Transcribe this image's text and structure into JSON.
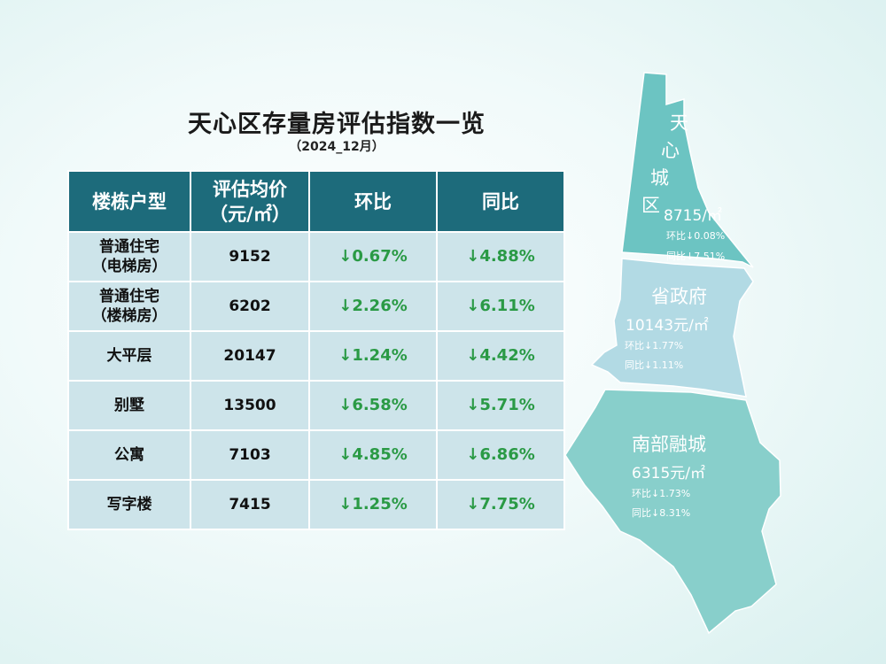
{
  "title": "天心区存量房评估指数一览",
  "subtitle": "（2024_12月）",
  "table": {
    "headers": {
      "type": "楼栋户型",
      "price_line1": "评估均价",
      "price_line2": "（元/㎡）",
      "mom": "环比",
      "yoy": "同比"
    },
    "rows": [
      {
        "type1": "普通住宅",
        "type2": "（电梯房）",
        "price": "9152",
        "mom": "↓0.67%",
        "yoy": "↓4.88%"
      },
      {
        "type1": "普通住宅",
        "type2": "（楼梯房）",
        "price": "6202",
        "mom": "↓2.26%",
        "yoy": "↓6.11%"
      },
      {
        "type1": "大平层",
        "type2": "",
        "price": "20147",
        "mom": "↓1.24%",
        "yoy": "↓4.42%"
      },
      {
        "type1": "别墅",
        "type2": "",
        "price": "13500",
        "mom": "↓6.58%",
        "yoy": "↓5.71%"
      },
      {
        "type1": "公寓",
        "type2": "",
        "price": "7103",
        "mom": "↓4.85%",
        "yoy": "↓6.86%"
      },
      {
        "type1": "写字楼",
        "type2": "",
        "price": "7415",
        "mom": "↓1.25%",
        "yoy": "↓7.75%"
      }
    ]
  },
  "map": {
    "colors": {
      "upper": "#6cc4c2",
      "middle": "#b2dae4",
      "lower": "#88cfcb"
    },
    "regions": [
      {
        "chars": [
          "天",
          "心",
          "城",
          "区"
        ],
        "price": "8715/㎡",
        "mom": "环比↓0.08%",
        "yoy": "同比↓7.51%"
      },
      {
        "name": "省政府",
        "price": "10143元/㎡",
        "mom": "环比↓1.77%",
        "yoy": "同比↓1.11%"
      },
      {
        "name": "南部融城",
        "price": "6315元/㎡",
        "mom": "环比↓1.73%",
        "yoy": "同比↓8.31%"
      }
    ]
  }
}
